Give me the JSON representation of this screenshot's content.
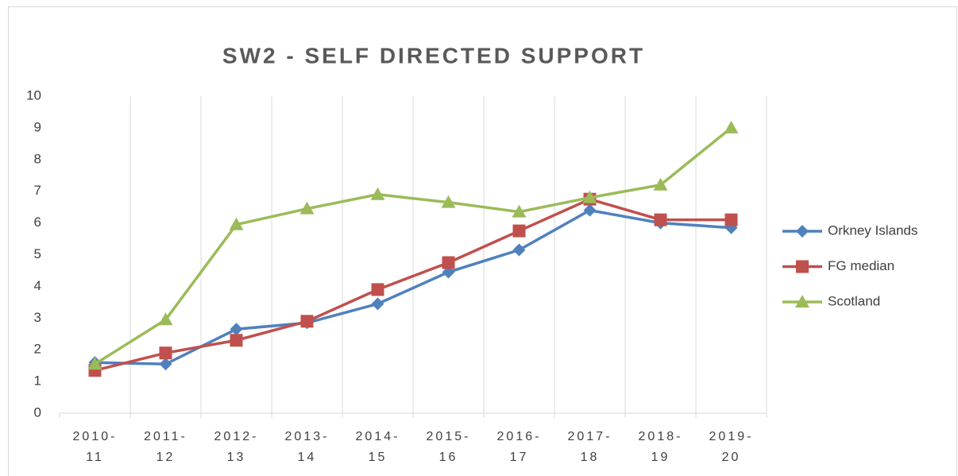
{
  "chart_data": {
    "type": "line",
    "title": "SW2 - SELF DIRECTED SUPPORT",
    "categories": [
      "2010-11",
      "2011-12",
      "2012-13",
      "2013-14",
      "2014-15",
      "2015-16",
      "2016-17",
      "2017-18",
      "2018-19",
      "2019-20"
    ],
    "series": [
      {
        "name": "Orkney Islands",
        "color": "#4f81bd",
        "marker": "diamond",
        "values": [
          1.6,
          1.55,
          2.65,
          2.85,
          3.45,
          4.45,
          5.15,
          6.4,
          6.0,
          5.85
        ]
      },
      {
        "name": "FG median",
        "color": "#c0504d",
        "marker": "square",
        "values": [
          1.35,
          1.9,
          2.3,
          2.9,
          3.9,
          4.75,
          5.75,
          6.75,
          6.1,
          6.1
        ]
      },
      {
        "name": "Scotland",
        "color": "#9bbb59",
        "marker": "triangle",
        "values": [
          1.55,
          2.95,
          5.95,
          6.45,
          6.9,
          6.65,
          6.35,
          6.8,
          7.2,
          9.0
        ]
      }
    ],
    "ylim": [
      0,
      10
    ],
    "yticks": [
      0,
      1,
      2,
      3,
      4,
      5,
      6,
      7,
      8,
      9,
      10
    ],
    "grid": true,
    "legend": "right"
  }
}
